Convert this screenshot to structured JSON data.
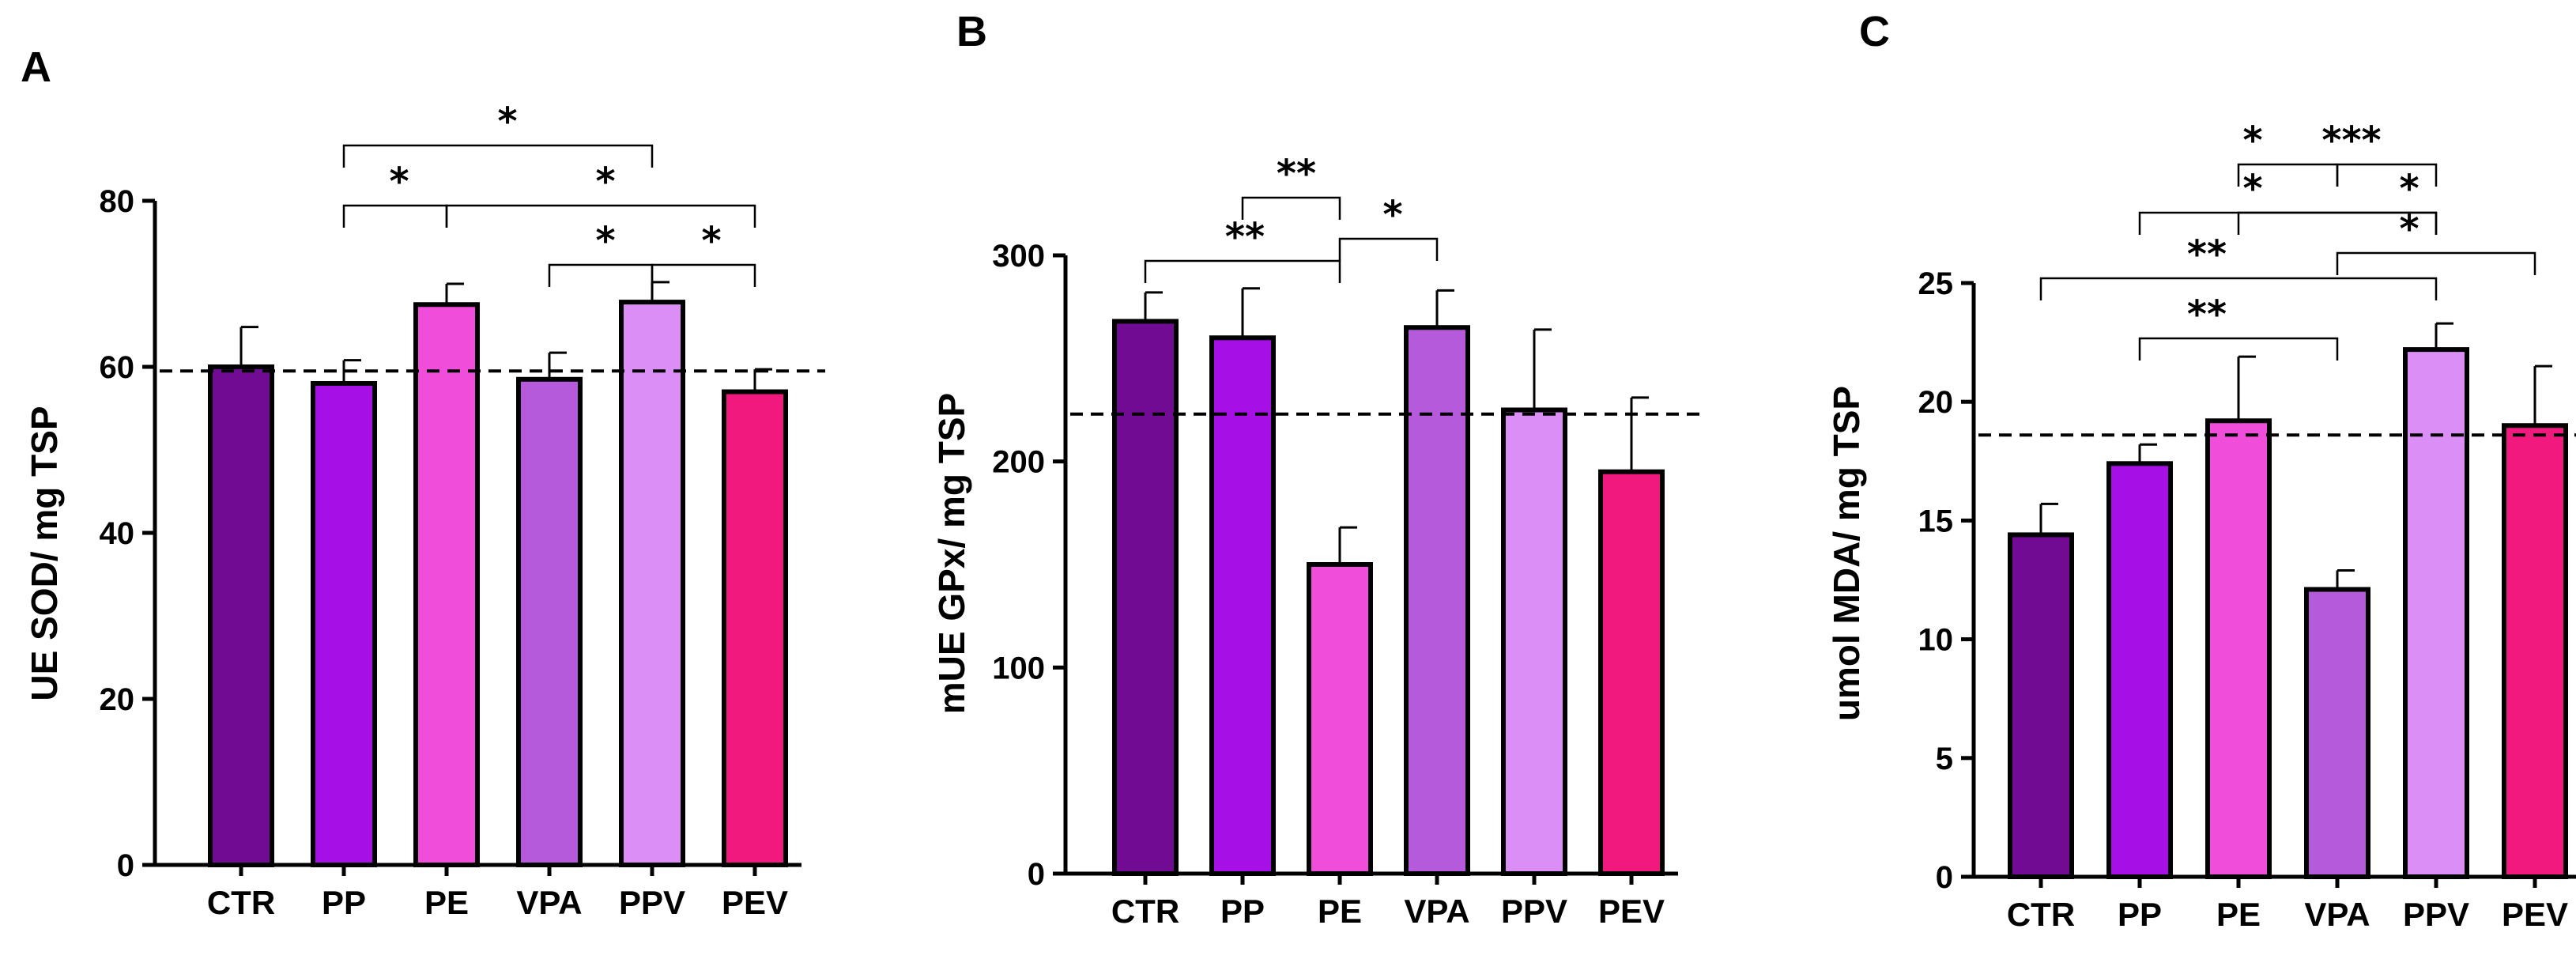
{
  "chart_data": [
    {
      "type": "bar",
      "panel": "A",
      "title": "",
      "xlabel": "",
      "ylabel": "UE SOD/ mg TSP",
      "categories": [
        "CTR",
        "PP",
        "PE",
        "VPA",
        "PPV",
        "PEV"
      ],
      "values": [
        60,
        58,
        67.5,
        58.5,
        67.8,
        57
      ],
      "errors": [
        4.8,
        2.8,
        2.5,
        3.2,
        2.4,
        2.7
      ],
      "colors": [
        "#720b94",
        "#a60fe6",
        "#f14ddb",
        "#b45adb",
        "#dc8ef7",
        "#f2197e"
      ],
      "reference_line": 59.5,
      "ylim": [
        0,
        80
      ],
      "yticks": [
        "0",
        "20",
        "40",
        "60",
        "80"
      ],
      "significance": [
        {
          "from": "PP",
          "to": "PPV",
          "label": "*"
        },
        {
          "from": "PP",
          "to": "PE",
          "label": "*"
        },
        {
          "from": "PE",
          "to": "PEV",
          "label": "*"
        },
        {
          "from": "VPA",
          "to": "PPV",
          "label": "*"
        },
        {
          "from": "PPV",
          "to": "PEV",
          "label": "*"
        }
      ]
    },
    {
      "type": "bar",
      "panel": "B",
      "title": "",
      "xlabel": "",
      "ylabel": "mUE GPx/ mg TSP",
      "categories": [
        "CTR",
        "PP",
        "PE",
        "VPA",
        "PPV",
        "PEV"
      ],
      "values": [
        268,
        260,
        150,
        265,
        225,
        195
      ],
      "errors": [
        14,
        24,
        18,
        18,
        39,
        36
      ],
      "colors": [
        "#720b94",
        "#a60fe6",
        "#f14ddb",
        "#b45adb",
        "#dc8ef7",
        "#f2197e"
      ],
      "reference_line": 223,
      "ylim": [
        0,
        300
      ],
      "yticks": [
        "0",
        "100",
        "200",
        "300"
      ],
      "significance": [
        {
          "from": "CTR",
          "to": "PE",
          "label": "**"
        },
        {
          "from": "PP",
          "to": "PE",
          "label": "**"
        },
        {
          "from": "PE",
          "to": "VPA",
          "label": "*"
        }
      ]
    },
    {
      "type": "bar",
      "panel": "C",
      "title": "",
      "xlabel": "",
      "ylabel": "umol MDA/ mg TSP",
      "categories": [
        "CTR",
        "PP",
        "PE",
        "VPA",
        "PPV",
        "PEV"
      ],
      "values": [
        14.4,
        17.4,
        19.2,
        12.1,
        22.2,
        19
      ],
      "errors": [
        1.3,
        0.8,
        2.7,
        0.8,
        1.1,
        2.5
      ],
      "colors": [
        "#720b94",
        "#a60fe6",
        "#f14ddb",
        "#b45adb",
        "#dc8ef7",
        "#f2197e"
      ],
      "reference_line": 18.6,
      "ylim": [
        0,
        25
      ],
      "yticks": [
        "0",
        "5",
        "10",
        "15",
        "20",
        "25"
      ],
      "significance": [
        {
          "from": "CTR",
          "to": "PPV",
          "label": "**"
        },
        {
          "from": "PP",
          "to": "VPA",
          "label": "**"
        },
        {
          "from": "PP",
          "to": "PPV",
          "label": "*"
        },
        {
          "from": "VPA",
          "to": "PEV",
          "label": "*"
        },
        {
          "from": "PE",
          "to": "VPA",
          "label": "*"
        },
        {
          "from": "VPA",
          "to": "PPV",
          "label": "***"
        },
        {
          "from": "PE",
          "to": "PPV",
          "label": "*"
        }
      ]
    }
  ]
}
